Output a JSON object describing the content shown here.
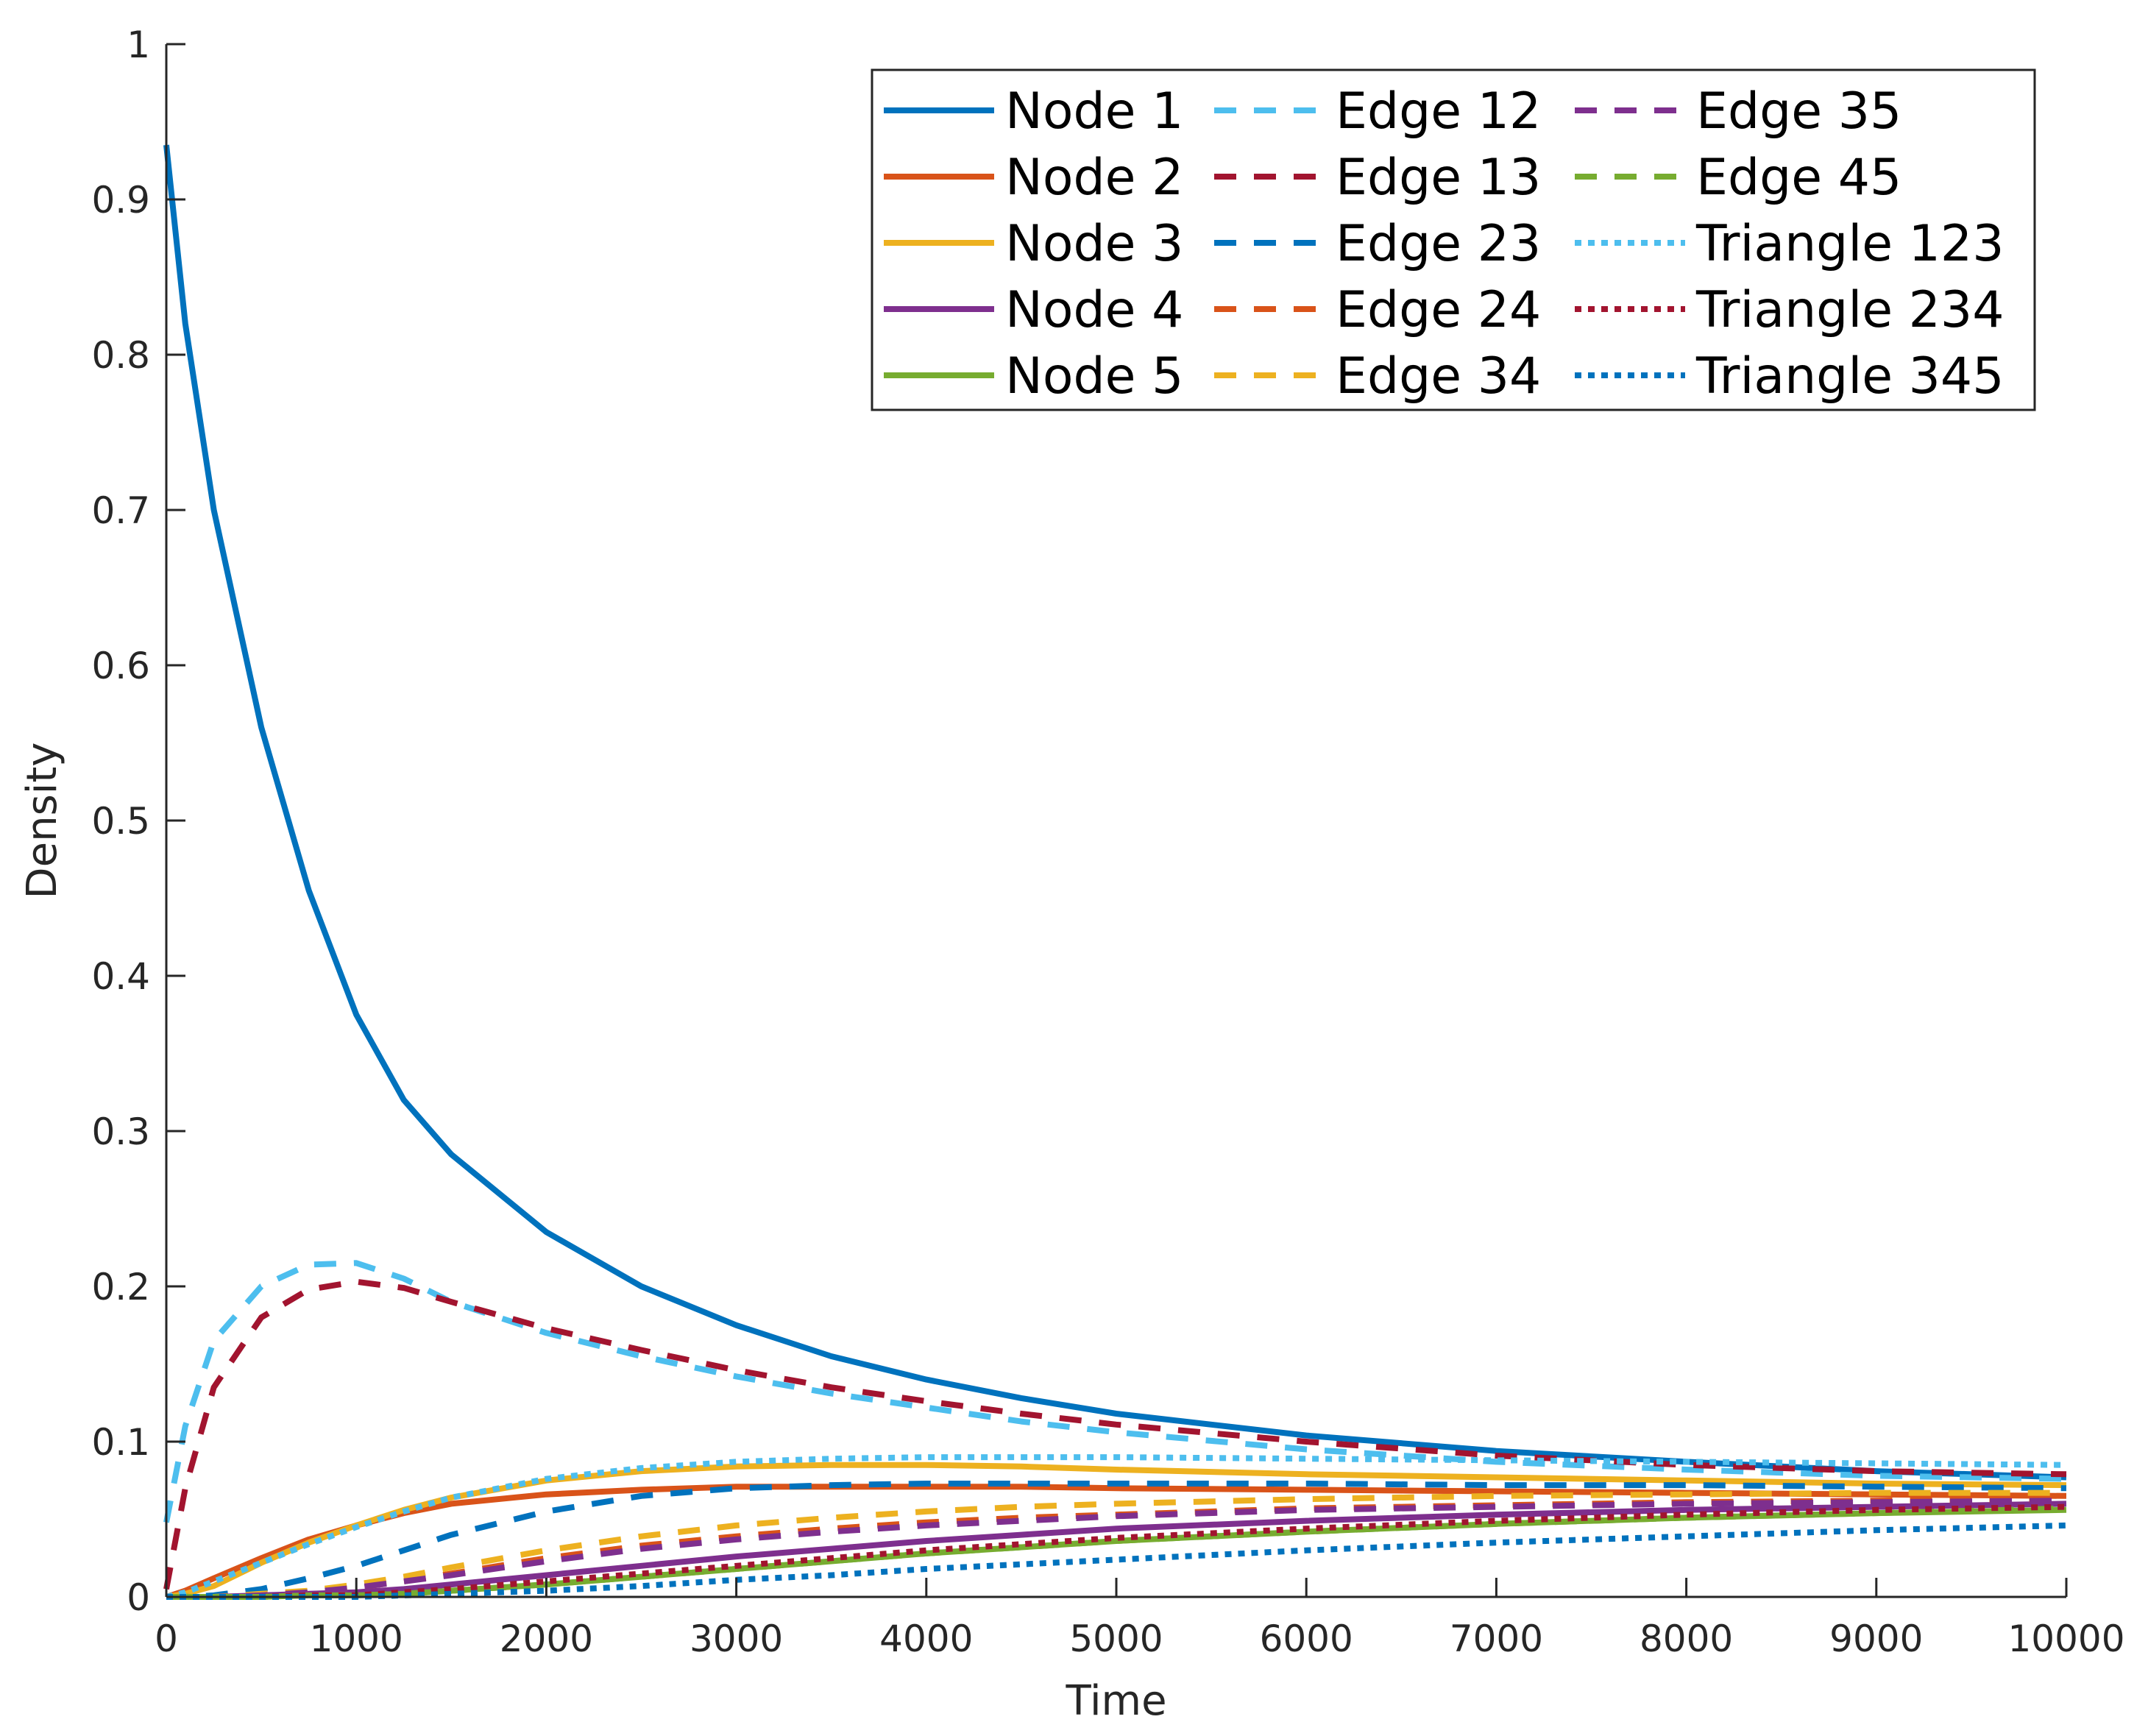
{
  "chart_data": {
    "type": "line",
    "title": "",
    "xlabel": "Time",
    "ylabel": "Density",
    "xlim": [
      0,
      10000
    ],
    "ylim": [
      0,
      1
    ],
    "xticks": [
      0,
      1000,
      2000,
      3000,
      4000,
      5000,
      6000,
      7000,
      8000,
      9000,
      10000
    ],
    "xtick_labels": [
      "0",
      "1000",
      "2000",
      "3000",
      "4000",
      "5000",
      "6000",
      "7000",
      "8000",
      "9000",
      "10000"
    ],
    "yticks": [
      0,
      0.1,
      0.2,
      0.3,
      0.4,
      0.5,
      0.6,
      0.7,
      0.8,
      0.9,
      1
    ],
    "ytick_labels": [
      "0",
      "0.1",
      "0.2",
      "0.3",
      "0.4",
      "0.5",
      "0.6",
      "0.7",
      "0.8",
      "0.9",
      "1"
    ],
    "grid": false,
    "legend": {
      "position": "top-right",
      "columns": 3
    },
    "x": [
      0,
      100,
      250,
      500,
      750,
      1000,
      1250,
      1500,
      2000,
      2500,
      3000,
      3500,
      4000,
      4500,
      5000,
      6000,
      7000,
      8000,
      9000,
      10000
    ],
    "series": [
      {
        "name": "Node 1",
        "color": "#0072BD",
        "style": "solid",
        "values": [
          0.935,
          0.82,
          0.7,
          0.56,
          0.455,
          0.375,
          0.32,
          0.285,
          0.235,
          0.2,
          0.175,
          0.155,
          0.14,
          0.128,
          0.118,
          0.104,
          0.094,
          0.087,
          0.081,
          0.077
        ]
      },
      {
        "name": "Node 2",
        "color": "#D95319",
        "style": "solid",
        "values": [
          0.0,
          0.004,
          0.012,
          0.025,
          0.037,
          0.046,
          0.054,
          0.06,
          0.066,
          0.069,
          0.071,
          0.071,
          0.071,
          0.071,
          0.07,
          0.069,
          0.068,
          0.067,
          0.066,
          0.065
        ]
      },
      {
        "name": "Node 3",
        "color": "#EDB120",
        "style": "solid",
        "values": [
          0.0,
          0.002,
          0.007,
          0.022,
          0.035,
          0.046,
          0.056,
          0.064,
          0.075,
          0.081,
          0.084,
          0.085,
          0.085,
          0.084,
          0.082,
          0.079,
          0.077,
          0.075,
          0.073,
          0.072
        ]
      },
      {
        "name": "Node 4",
        "color": "#7E2F8E",
        "style": "solid",
        "values": [
          0.0,
          0.0,
          0.0,
          0.001,
          0.002,
          0.003,
          0.005,
          0.008,
          0.014,
          0.02,
          0.026,
          0.031,
          0.036,
          0.04,
          0.044,
          0.049,
          0.053,
          0.056,
          0.058,
          0.06
        ]
      },
      {
        "name": "Node 5",
        "color": "#77AC30",
        "style": "solid",
        "values": [
          0.0,
          0.0,
          0.0,
          0.0,
          0.001,
          0.001,
          0.002,
          0.004,
          0.008,
          0.013,
          0.018,
          0.023,
          0.028,
          0.032,
          0.036,
          0.042,
          0.047,
          0.051,
          0.054,
          0.056
        ]
      },
      {
        "name": "Edge 12",
        "color": "#4DBEEE",
        "style": "dashed",
        "values": [
          0.048,
          0.11,
          0.165,
          0.2,
          0.214,
          0.215,
          0.205,
          0.19,
          0.17,
          0.155,
          0.142,
          0.131,
          0.122,
          0.113,
          0.106,
          0.095,
          0.087,
          0.082,
          0.078,
          0.076
        ]
      },
      {
        "name": "Edge 13",
        "color": "#A2142F",
        "style": "dashed",
        "values": [
          0.005,
          0.07,
          0.135,
          0.18,
          0.198,
          0.203,
          0.199,
          0.19,
          0.173,
          0.159,
          0.146,
          0.135,
          0.126,
          0.118,
          0.111,
          0.1,
          0.091,
          0.085,
          0.081,
          0.079
        ]
      },
      {
        "name": "Edge 23",
        "color": "#0072BD",
        "style": "dashed",
        "values": [
          0.0,
          0.0,
          0.001,
          0.005,
          0.012,
          0.02,
          0.03,
          0.04,
          0.055,
          0.065,
          0.07,
          0.072,
          0.073,
          0.073,
          0.073,
          0.073,
          0.072,
          0.072,
          0.071,
          0.07
        ]
      },
      {
        "name": "Edge 24",
        "color": "#D95319",
        "style": "dashed",
        "values": [
          0.0,
          0.0,
          0.0,
          0.001,
          0.003,
          0.006,
          0.01,
          0.015,
          0.025,
          0.033,
          0.039,
          0.044,
          0.048,
          0.051,
          0.053,
          0.057,
          0.059,
          0.061,
          0.062,
          0.063
        ]
      },
      {
        "name": "Edge 34",
        "color": "#EDB120",
        "style": "dashed",
        "values": [
          0.0,
          0.0,
          0.0,
          0.002,
          0.004,
          0.008,
          0.013,
          0.019,
          0.03,
          0.039,
          0.046,
          0.051,
          0.055,
          0.058,
          0.06,
          0.063,
          0.065,
          0.066,
          0.067,
          0.067
        ]
      },
      {
        "name": "Edge 35",
        "color": "#7E2F8E",
        "style": "dashed",
        "values": [
          0.0,
          0.0,
          0.0,
          0.001,
          0.003,
          0.006,
          0.01,
          0.014,
          0.023,
          0.031,
          0.037,
          0.042,
          0.046,
          0.049,
          0.052,
          0.056,
          0.058,
          0.06,
          0.061,
          0.062
        ]
      },
      {
        "name": "Edge 45",
        "color": "#77AC30",
        "style": "dashed",
        "values": [
          0.0,
          0.0,
          0.0,
          0.0,
          0.001,
          0.001,
          0.002,
          0.004,
          0.008,
          0.013,
          0.018,
          0.023,
          0.028,
          0.032,
          0.036,
          0.042,
          0.047,
          0.051,
          0.054,
          0.057
        ]
      },
      {
        "name": "Triangle 123",
        "color": "#4DBEEE",
        "style": "dotted",
        "values": [
          0.0,
          0.003,
          0.01,
          0.022,
          0.034,
          0.045,
          0.055,
          0.064,
          0.076,
          0.083,
          0.087,
          0.089,
          0.09,
          0.09,
          0.09,
          0.089,
          0.088,
          0.087,
          0.086,
          0.085
        ]
      },
      {
        "name": "Triangle 234",
        "color": "#A2142F",
        "style": "dotted",
        "values": [
          0.0,
          0.0,
          0.0,
          0.0,
          0.001,
          0.001,
          0.003,
          0.005,
          0.01,
          0.015,
          0.02,
          0.025,
          0.03,
          0.034,
          0.038,
          0.044,
          0.049,
          0.053,
          0.056,
          0.058
        ]
      },
      {
        "name": "Triangle 345",
        "color": "#0072BD",
        "style": "dotted",
        "values": [
          0.0,
          0.0,
          0.0,
          0.0,
          0.0,
          0.0,
          0.001,
          0.002,
          0.004,
          0.007,
          0.011,
          0.014,
          0.018,
          0.021,
          0.024,
          0.03,
          0.035,
          0.039,
          0.043,
          0.046
        ]
      }
    ]
  }
}
